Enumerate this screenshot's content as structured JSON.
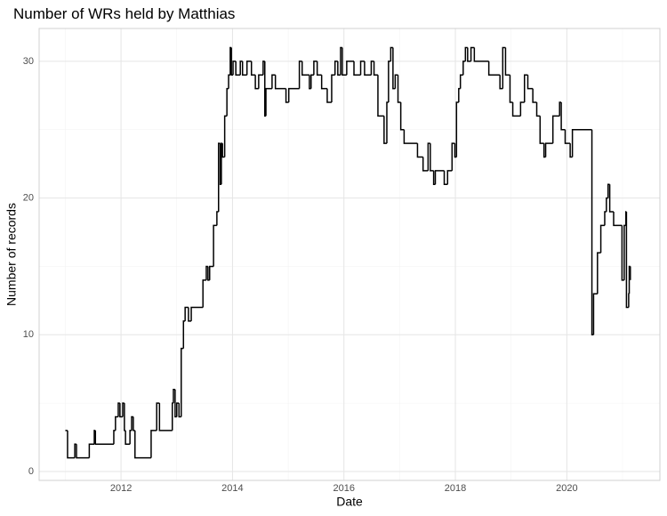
{
  "chart_data": {
    "type": "step",
    "title": "Number of WRs held by Matthias",
    "x_label": "Date",
    "y_label": "Number of records",
    "x": [
      2011.0,
      2011.04,
      2011.17,
      2011.2,
      2011.43,
      2011.52,
      2011.54,
      2011.87,
      2011.9,
      2011.95,
      2011.98,
      2012.03,
      2012.06,
      2012.08,
      2012.16,
      2012.19,
      2012.22,
      2012.25,
      2012.54,
      2012.64,
      2012.69,
      2012.92,
      2012.94,
      2012.97,
      2013.0,
      2013.04,
      2013.08,
      2013.12,
      2013.15,
      2013.21,
      2013.26,
      2013.47,
      2013.53,
      2013.56,
      2013.59,
      2013.66,
      2013.72,
      2013.75,
      2013.78,
      2013.8,
      2013.82,
      2013.86,
      2013.9,
      2013.93,
      2013.96,
      2013.98,
      2014.01,
      2014.06,
      2014.14,
      2014.18,
      2014.26,
      2014.34,
      2014.41,
      2014.47,
      2014.55,
      2014.58,
      2014.6,
      2014.71,
      2014.77,
      2014.96,
      2015.01,
      2015.2,
      2015.25,
      2015.38,
      2015.41,
      2015.46,
      2015.52,
      2015.6,
      2015.7,
      2015.78,
      2015.84,
      2015.89,
      2015.94,
      2015.97,
      2016.05,
      2016.18,
      2016.3,
      2016.37,
      2016.49,
      2016.54,
      2016.61,
      2016.72,
      2016.77,
      2016.8,
      2016.84,
      2016.88,
      2016.92,
      2016.97,
      2017.02,
      2017.08,
      2017.32,
      2017.42,
      2017.51,
      2017.55,
      2017.61,
      2017.64,
      2017.8,
      2017.86,
      2017.94,
      2017.99,
      2018.02,
      2018.06,
      2018.09,
      2018.14,
      2018.18,
      2018.22,
      2018.28,
      2018.34,
      2018.6,
      2018.8,
      2018.85,
      2018.9,
      2018.98,
      2019.03,
      2019.17,
      2019.24,
      2019.3,
      2019.39,
      2019.46,
      2019.52,
      2019.59,
      2019.62,
      2019.75,
      2019.87,
      2019.9,
      2019.97,
      2020.06,
      2020.1,
      2020.45,
      2020.48,
      2020.55,
      2020.61,
      2020.68,
      2020.71,
      2020.74,
      2020.77,
      2020.84,
      2020.99,
      2021.03,
      2021.06,
      2021.07,
      2021.11,
      2021.12,
      2021.14
    ],
    "values": [
      3,
      1,
      2,
      1,
      2,
      3,
      2,
      3,
      4,
      5,
      4,
      5,
      3,
      2,
      3,
      4,
      3,
      1,
      3,
      5,
      3,
      5,
      6,
      4,
      5,
      4,
      9,
      11,
      12,
      11,
      12,
      14,
      15,
      14,
      15,
      18,
      19,
      24,
      21,
      24,
      23,
      26,
      28,
      29,
      31,
      29,
      30,
      29,
      30,
      29,
      30,
      29,
      28,
      29,
      30,
      26,
      28,
      29,
      28,
      27,
      28,
      30,
      29,
      28,
      29,
      30,
      29,
      28,
      27,
      29,
      30,
      29,
      31,
      29,
      30,
      29,
      30,
      29,
      30,
      29,
      26,
      24,
      27,
      30,
      31,
      28,
      29,
      27,
      25,
      24,
      23,
      22,
      24,
      22,
      21,
      22,
      21,
      22,
      24,
      23,
      27,
      28,
      29,
      30,
      31,
      30,
      31,
      30,
      29,
      28,
      31,
      29,
      27,
      26,
      27,
      29,
      28,
      27,
      26,
      24,
      23,
      24,
      26,
      27,
      25,
      24,
      23,
      25,
      10,
      13,
      16,
      18,
      19,
      20,
      21,
      19,
      18,
      14,
      18,
      19,
      12,
      13,
      15,
      14
    ],
    "color": "#000000",
    "xlim": [
      2010.53,
      2021.67
    ],
    "xticks": [
      2012,
      2014,
      2016,
      2018,
      2020
    ],
    "ylim": [
      -0.65,
      32.4
    ],
    "yticks": [
      0,
      10,
      20,
      30
    ],
    "grid": true
  }
}
